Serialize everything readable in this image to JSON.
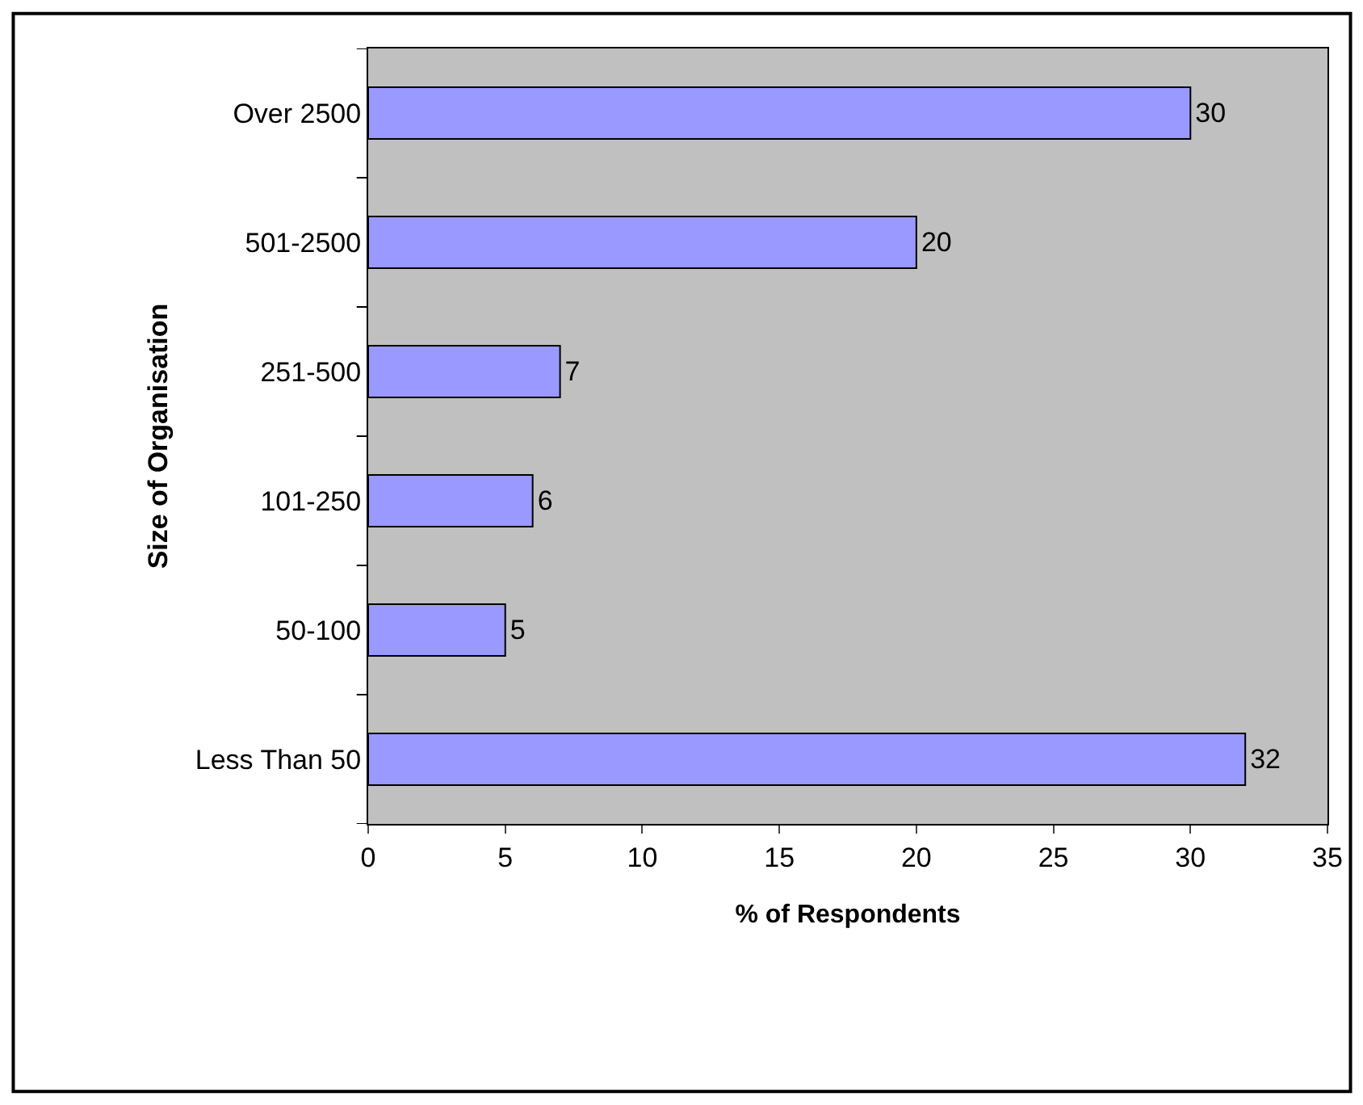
{
  "chart_data": {
    "type": "bar",
    "orientation": "horizontal",
    "xlabel": "% of Respondents",
    "ylabel": "Size of Organisation",
    "categories": [
      "Over 2500",
      "501-2500",
      "251-500",
      "101-250",
      "50-100",
      "Less Than 50"
    ],
    "values": [
      30,
      20,
      7,
      6,
      5,
      32
    ],
    "color": "#9999ff",
    "data_labels": true,
    "xlim": [
      0,
      35
    ],
    "xticks": [
      0,
      5,
      10,
      15,
      20,
      25,
      30,
      35
    ],
    "grid": false,
    "legend": false
  }
}
